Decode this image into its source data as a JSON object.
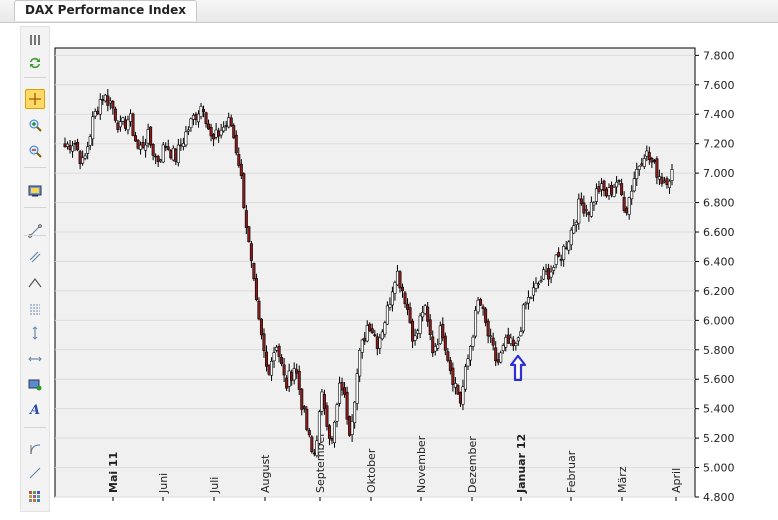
{
  "tab": {
    "title": "DAX Performance Index"
  },
  "toolbar": {
    "icons": [
      "drag-handle-icon",
      "refresh-icon",
      "crosshair-icon",
      "zoom-in-icon",
      "zoom-out-icon",
      "properties-icon",
      "trend-line-icon",
      "channel-line-icon",
      "angle-line-icon",
      "fibonacci-icon",
      "vertical-line-icon",
      "horizontal-line-icon",
      "rectangle-icon",
      "text-icon",
      "arc-icon",
      "ray-line-icon",
      "grid-icon"
    ],
    "active": "crosshair-icon"
  },
  "colors": {
    "up": "#ffffff",
    "down": "#8b1a1a",
    "wick": "#000000",
    "plot_bg": "#f0f0f0",
    "arrow": "#2a2fd6"
  },
  "chart_data": {
    "type": "candlestick",
    "title": "",
    "xlabel": "",
    "ylabel": "",
    "ylim": [
      4800,
      7850
    ],
    "y_axis_position": "right",
    "grid": true,
    "y_ticks": [
      "7.800",
      "7.600",
      "7.400",
      "7.200",
      "7.000",
      "6.800",
      "6.600",
      "6.400",
      "6.200",
      "6.000",
      "5.800",
      "5.600",
      "5.400",
      "5.200",
      "5.000",
      "4.800"
    ],
    "x_ticks": [
      {
        "label": "Mai 11",
        "bold": true
      },
      {
        "label": "Juni",
        "bold": false
      },
      {
        "label": "Juli",
        "bold": false
      },
      {
        "label": "August",
        "bold": false
      },
      {
        "label": "September",
        "bold": false
      },
      {
        "label": "Oktober",
        "bold": false
      },
      {
        "label": "November",
        "bold": false
      },
      {
        "label": "Dezember",
        "bold": false
      },
      {
        "label": "Januar 12",
        "bold": true
      },
      {
        "label": "Februar",
        "bold": false
      },
      {
        "label": "März",
        "bold": false
      },
      {
        "label": "April",
        "bold": false
      }
    ],
    "anchors": [
      [
        "Apr 2011",
        7180
      ],
      [
        "Apr 2011",
        7220
      ],
      [
        "Apr 2011",
        7050
      ],
      [
        "Mai 2011",
        7350
      ],
      [
        "Mai 2011",
        7530
      ],
      [
        "Mai 2011",
        7480
      ],
      [
        "Mai 2011",
        7300
      ],
      [
        "Mai 2011",
        7380
      ],
      [
        "Jun 2011",
        7150
      ],
      [
        "Jun 2011",
        7250
      ],
      [
        "Jun 2011",
        7080
      ],
      [
        "Jun 2011",
        7200
      ],
      [
        "Jun 2011",
        7100
      ],
      [
        "Jun 2011",
        7250
      ],
      [
        "Jul 2011",
        7380
      ],
      [
        "Jul 2011",
        7480
      ],
      [
        "Jul 2011",
        7200
      ],
      [
        "Jul 2011",
        7300
      ],
      [
        "Jul 2011",
        7350
      ],
      [
        "Jul 2011",
        7050
      ],
      [
        "Aug 2011",
        6500
      ],
      [
        "Aug 2011",
        6000
      ],
      [
        "Aug 2011",
        5650
      ],
      [
        "Aug 2011",
        5850
      ],
      [
        "Aug 2011",
        5550
      ],
      [
        "Aug 2011",
        5700
      ],
      [
        "Sep 2011",
        5350
      ],
      [
        "Sep 2011",
        5050
      ],
      [
        "Sep 2011",
        5500
      ],
      [
        "Sep 2011",
        5150
      ],
      [
        "Sep 2011",
        5600
      ],
      [
        "Okt 2011",
        5250
      ],
      [
        "Okt 2011",
        5750
      ],
      [
        "Okt 2011",
        6000
      ],
      [
        "Okt 2011",
        5850
      ],
      [
        "Okt 2011",
        6050
      ],
      [
        "Okt 2011",
        6350
      ],
      [
        "Okt 2011",
        6150
      ],
      [
        "Nov 2011",
        5850
      ],
      [
        "Nov 2011",
        6100
      ],
      [
        "Nov 2011",
        5800
      ],
      [
        "Nov 2011",
        5950
      ],
      [
        "Nov 2011",
        5650
      ],
      [
        "Nov 2011",
        5450
      ],
      [
        "Dez 2011",
        5800
      ],
      [
        "Dez 2011",
        6150
      ],
      [
        "Dez 2011",
        5900
      ],
      [
        "Dez 2011",
        5700
      ],
      [
        "Dez 2011",
        5850
      ],
      [
        "Dez 2011",
        5800
      ],
      [
        "Jan 2012",
        6100
      ],
      [
        "Jan 2012",
        6200
      ],
      [
        "Jan 2012",
        6300
      ],
      [
        "Jan 2012",
        6350
      ],
      [
        "Jan 2012",
        6450
      ],
      [
        "Feb 2012",
        6600
      ],
      [
        "Feb 2012",
        6800
      ],
      [
        "Feb 2012",
        6750
      ],
      [
        "Feb 2012",
        6900
      ],
      [
        "Feb 2012",
        6850
      ],
      [
        "Mär 2012",
        6950
      ],
      [
        "Mär 2012",
        6750
      ],
      [
        "Mär 2012",
        7000
      ],
      [
        "Mär 2012",
        7150
      ],
      [
        "Mär 2012",
        7050
      ],
      [
        "Mär 2012",
        6950
      ],
      [
        "Apr 2012",
        7000
      ]
    ],
    "annotations": [
      {
        "type": "up-arrow",
        "near": "Jan 2012",
        "value": 5650
      }
    ]
  }
}
